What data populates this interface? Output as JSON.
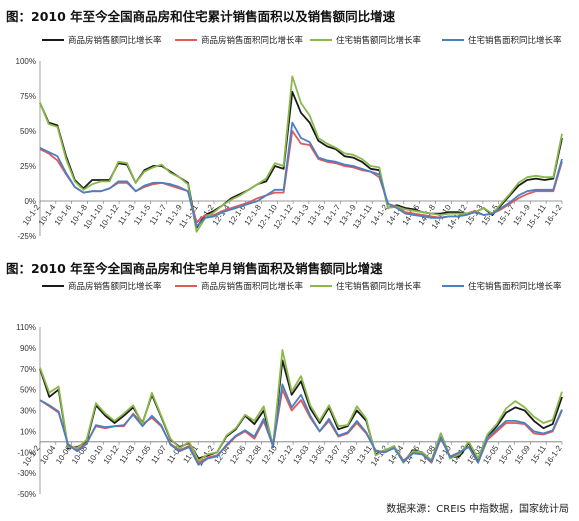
{
  "chart_data": [
    {
      "type": "line",
      "title": "图：2010 年至今全国商品房和住宅累计销售面积以及销售额同比增速",
      "ylim": [
        -25,
        100
      ],
      "yticks": [
        "-25%",
        "0%",
        "25%",
        "50%",
        "75%",
        "100%"
      ],
      "tick_labels": [
        "10-1-2",
        "10-1-4",
        "10-1-6",
        "10-1-8",
        "10-1-10",
        "10-1-12",
        "11-1-3",
        "11-1-5",
        "11-1-7",
        "11-1-9",
        "11-1-11",
        "12-1-2",
        "12-1-4",
        "12-1-6",
        "12-1-8",
        "12-1-10",
        "12-1-12",
        "13-1-3",
        "13-1-5",
        "13-1-7",
        "13-1-9",
        "13-1-11",
        "14-1-2",
        "14-1-4",
        "14-1-6",
        "14-1-8",
        "14-1-10",
        "14-1-12",
        "15-1-3",
        "15-1-5",
        "15-1-7",
        "15-1-9",
        "15-1-11",
        "16-1-2"
      ],
      "legend_position": "top",
      "series": [
        {
          "name": "商品房销售额同比增长率",
          "color": "#1a1a1a",
          "values": [
            70,
            56,
            54,
            32,
            15,
            9,
            15,
            15,
            15,
            27,
            26,
            13,
            22,
            25,
            25,
            21,
            17,
            13,
            -19,
            -10,
            -7,
            -3,
            2,
            5,
            8,
            12,
            14,
            25,
            23,
            78,
            63,
            56,
            43,
            39,
            37,
            32,
            31,
            28,
            23,
            22,
            -5,
            -3,
            -5,
            -6,
            -8,
            -9,
            -9,
            -8,
            -8,
            -9,
            -8,
            -5,
            -10,
            -3,
            4,
            11,
            15,
            16,
            15,
            16,
            45
          ]
        },
        {
          "name": "商品房销售面积同比增长率",
          "color": "#e05a5a",
          "values": [
            37,
            34,
            29,
            19,
            10,
            6,
            7,
            7,
            9,
            13,
            13,
            7,
            10,
            12,
            13,
            11,
            9,
            7,
            -15,
            -10,
            -10,
            -7,
            -5,
            -3,
            -1,
            2,
            4,
            6,
            6,
            50,
            41,
            40,
            30,
            28,
            27,
            25,
            24,
            22,
            21,
            17,
            -2,
            -4,
            -8,
            -9,
            -10,
            -11,
            -12,
            -11,
            -11,
            -9,
            -7,
            -10,
            -9,
            -6,
            -2,
            2,
            5,
            7,
            7,
            7,
            28
          ]
        },
        {
          "name": "住宅销售额同比增长率",
          "color": "#8bb84a",
          "values": [
            70,
            55,
            53,
            30,
            14,
            8,
            12,
            14,
            14,
            28,
            27,
            13,
            21,
            24,
            26,
            20,
            17,
            12,
            -22,
            -12,
            -8,
            -3,
            1,
            4,
            8,
            12,
            16,
            27,
            25,
            89,
            70,
            61,
            45,
            41,
            38,
            34,
            33,
            30,
            25,
            24,
            -5,
            -4,
            -6,
            -7,
            -8,
            -9,
            -10,
            -9,
            -9,
            -9,
            -8,
            -5,
            -9,
            -2,
            5,
            13,
            17,
            18,
            17,
            17,
            48
          ]
        },
        {
          "name": "住宅销售面积同比增长率",
          "color": "#4a7fc0",
          "values": [
            38,
            35,
            32,
            20,
            10,
            6,
            7,
            7,
            9,
            14,
            14,
            7,
            11,
            13,
            13,
            12,
            10,
            7,
            -18,
            -12,
            -11,
            -8,
            -6,
            -4,
            -2,
            0,
            4,
            8,
            8,
            56,
            45,
            42,
            31,
            29,
            28,
            26,
            25,
            23,
            21,
            19,
            -2,
            -5,
            -9,
            -10,
            -11,
            -12,
            -12,
            -11,
            -11,
            -10,
            -8,
            -10,
            -9,
            -5,
            -1,
            4,
            7,
            8,
            8,
            8,
            30
          ]
        }
      ]
    },
    {
      "type": "line",
      "title": "图：2010 年至今全国商品房和住宅单月销售面积及销售额同比增速",
      "ylim": [
        -50,
        110
      ],
      "yticks": [
        "-50%",
        "-30%",
        "-10%",
        "10%",
        "30%",
        "50%",
        "70%",
        "90%",
        "110%"
      ],
      "tick_labels": [
        "10-1-2",
        "10-04",
        "10-06",
        "10-08",
        "10-10",
        "10-12",
        "11-03",
        "11-05",
        "11-07",
        "11-09",
        "11-11",
        "12-1-2",
        "12-04",
        "12-06",
        "12-08",
        "12-10",
        "12-12",
        "13-03",
        "13-05",
        "13-07",
        "13-09",
        "13-11",
        "14-1-2",
        "14-04",
        "14-06",
        "14-08",
        "14-10",
        "14-12",
        "15-03",
        "15-05",
        "15-07",
        "15-09",
        "15-11",
        "16-1-2"
      ],
      "legend_position": "top",
      "series": [
        {
          "name": "商品房销售额同比增长率",
          "color": "#1a1a1a",
          "values": [
            70,
            43,
            50,
            -6,
            -5,
            0,
            35,
            25,
            18,
            25,
            33,
            18,
            45,
            24,
            2,
            -5,
            -1,
            -16,
            -13,
            -10,
            5,
            12,
            25,
            17,
            30,
            -5,
            78,
            45,
            58,
            32,
            18,
            33,
            12,
            15,
            30,
            20,
            -12,
            -8,
            -5,
            -20,
            -8,
            -10,
            -18,
            8,
            -15,
            -14,
            -1,
            -18,
            5,
            15,
            28,
            33,
            30,
            20,
            13,
            17,
            43
          ]
        },
        {
          "name": "商品房销售面积同比增长率",
          "color": "#e05a5a",
          "values": [
            40,
            34,
            28,
            -2,
            -8,
            -1,
            15,
            13,
            15,
            15,
            27,
            17,
            23,
            15,
            -2,
            -8,
            -4,
            -20,
            -15,
            -13,
            -4,
            5,
            10,
            3,
            20,
            -4,
            50,
            30,
            40,
            23,
            10,
            20,
            5,
            8,
            18,
            8,
            -8,
            -10,
            -5,
            -18,
            -10,
            -12,
            -20,
            3,
            -14,
            -10,
            -5,
            -20,
            2,
            10,
            18,
            18,
            17,
            8,
            7,
            10,
            30
          ]
        },
        {
          "name": "住宅销售额同比增长率",
          "color": "#8bb84a",
          "values": [
            71,
            47,
            53,
            -5,
            -6,
            2,
            37,
            27,
            20,
            27,
            35,
            17,
            47,
            25,
            3,
            -6,
            0,
            -18,
            -12,
            -10,
            6,
            13,
            26,
            20,
            34,
            -4,
            88,
            48,
            63,
            35,
            20,
            35,
            15,
            16,
            34,
            22,
            -13,
            -8,
            -4,
            -20,
            -9,
            -10,
            -18,
            8,
            -16,
            -12,
            0,
            -16,
            7,
            17,
            32,
            39,
            33,
            24,
            18,
            21,
            48
          ]
        },
        {
          "name": "住宅销售面积同比增长率",
          "color": "#4a7fc0",
          "values": [
            40,
            35,
            29,
            -3,
            -9,
            -2,
            16,
            14,
            15,
            16,
            26,
            15,
            25,
            16,
            -3,
            -9,
            -5,
            -22,
            -16,
            -14,
            -3,
            6,
            11,
            5,
            22,
            -4,
            55,
            33,
            45,
            25,
            10,
            22,
            6,
            9,
            20,
            9,
            -9,
            -10,
            -6,
            -19,
            -11,
            -12,
            -19,
            4,
            -15,
            -10,
            -5,
            -20,
            4,
            12,
            20,
            20,
            18,
            10,
            8,
            11,
            31
          ]
        }
      ]
    }
  ],
  "source_text": "数据来源：CREIS 中指数据，国家统计局"
}
